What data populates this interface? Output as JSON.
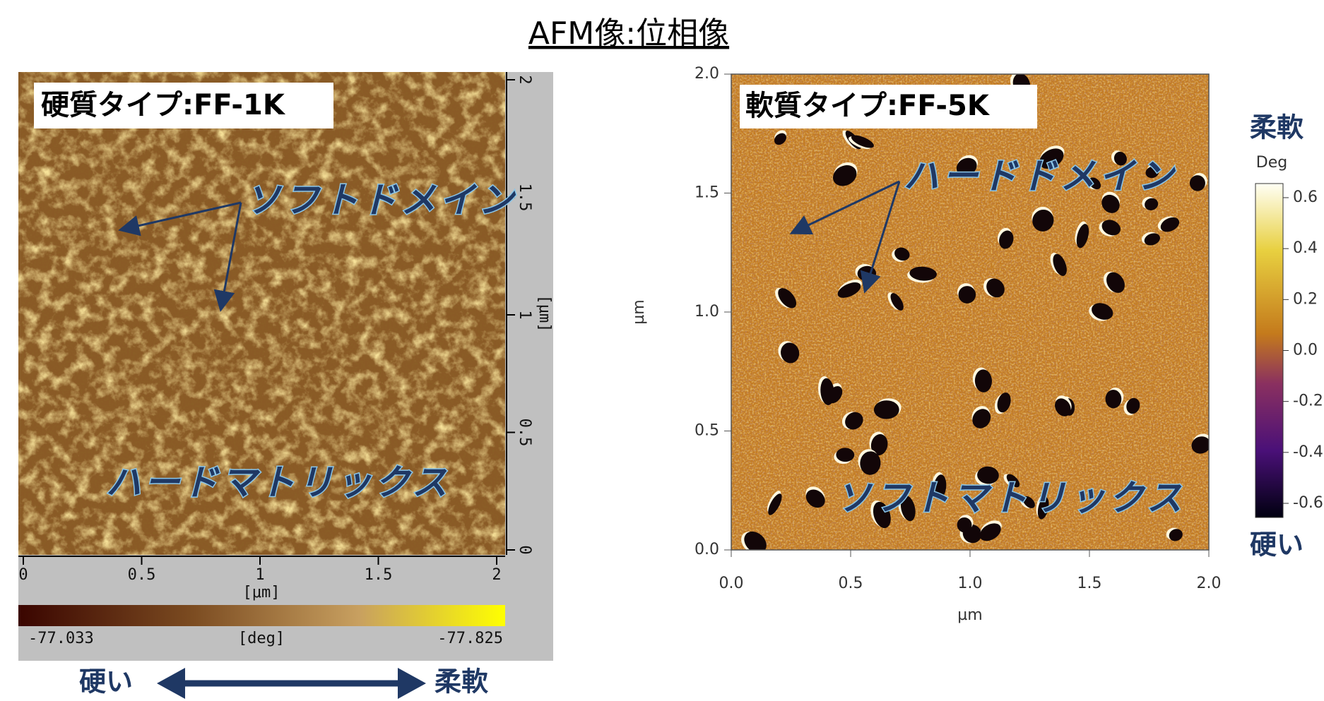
{
  "title": "AFM像:位相像",
  "left_panel": {
    "label": "硬質タイプ:FF-1K",
    "annotations": [
      "ソフトドメイン",
      "ハードマトリックス"
    ],
    "x_axis": {
      "ticks": [
        "0",
        "0.5",
        "1",
        "1.5",
        "2"
      ],
      "label": "[μm]"
    },
    "y_axis": {
      "ticks": [
        "0",
        "0.5",
        "1",
        "1.5",
        "2"
      ],
      "label": "[μm]"
    },
    "colorbar": {
      "min_label": "-77.033",
      "unit": "[deg]",
      "max_label": "-77.825"
    },
    "legend": {
      "left": "硬い",
      "right": "柔軟"
    }
  },
  "right_panel": {
    "label": "軟質タイプ:FF-5K",
    "annotations": [
      "ハードドメイン",
      "ソフトマトリックス"
    ],
    "x_axis": {
      "ticks": [
        "0.0",
        "0.5",
        "1.0",
        "1.5",
        "2.0"
      ],
      "label": "µm"
    },
    "y_axis": {
      "ticks": [
        "0.0",
        "0.5",
        "1.0",
        "1.5",
        "2.0"
      ],
      "label": "µm"
    },
    "colorbar": {
      "top": "柔軟",
      "unit": "Deg",
      "ticks": [
        "0.6",
        "0.4",
        "0.2",
        "0.0",
        "-0.2",
        "-0.4",
        "-0.6"
      ],
      "bottom": "硬い"
    }
  }
}
